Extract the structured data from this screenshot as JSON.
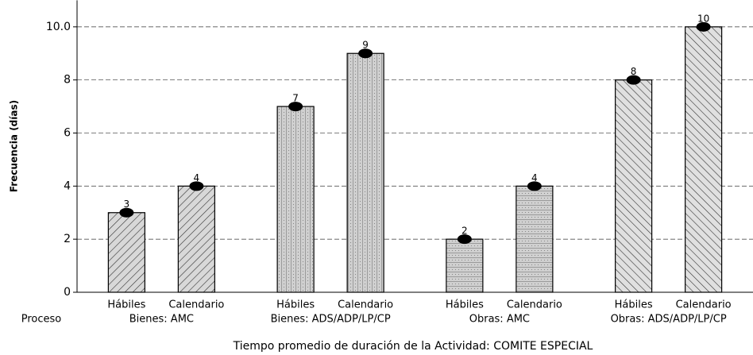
{
  "chart_data": {
    "type": "bar",
    "x_label": "Tiempo promedio de duración de la Actividad: COMITE ESPECIAL",
    "y_label": "Frecuencia (días)",
    "group_axis_label": "Proceso",
    "categories": [
      "Hábiles",
      "Calendario",
      "Hábiles",
      "Calendario",
      "Hábiles",
      "Calendario",
      "Hábiles",
      "Calendario"
    ],
    "groups": [
      "Bienes: AMC",
      "Bienes: ADS/ADP/LP/CP",
      "Obras: AMC",
      "Obras: ADS/ADP/LP/CP"
    ],
    "values": [
      3,
      4,
      7,
      9,
      2,
      4,
      8,
      10
    ],
    "patterns": [
      "diagonal",
      "vertical",
      "horizontal",
      "backdiagonal"
    ],
    "color": "#000000",
    "ylim": [
      0,
      11
    ],
    "yticks": [
      0,
      2,
      4,
      6,
      8,
      {
        "value": 10,
        "label": "10.0"
      }
    ],
    "grid": true
  }
}
